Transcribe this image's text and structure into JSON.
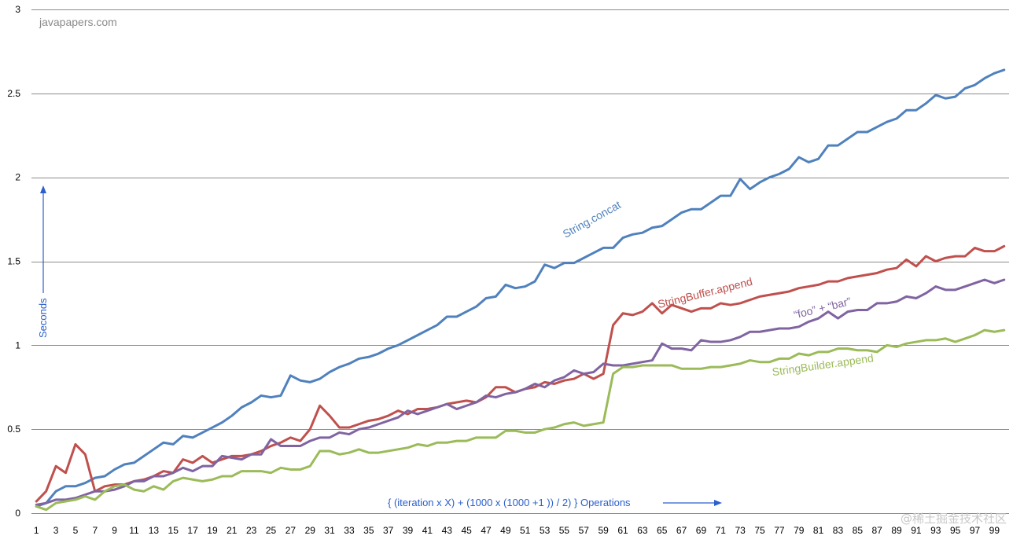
{
  "watermark": "javapapers.com",
  "footer_mark": "@稀土掘金技术社区",
  "colors": {
    "concat": "#4f81bd",
    "buffer": "#c0504d",
    "plus": "#8064a2",
    "builder": "#9bbb59",
    "annotation": "#2a5fcc",
    "grid": "#8c8c8c"
  },
  "chart_data": {
    "type": "line",
    "title": "",
    "xlabel": "{ (iteration x X) + (1000 x (1000 +1 )) / 2) } Operations",
    "ylabel": "Seconds",
    "ylim": [
      0,
      3
    ],
    "yticks": [
      "0",
      "0.5",
      "1",
      "1.5",
      "2",
      "2.5",
      "3"
    ],
    "x_tick_labels": [
      "1",
      "3",
      "5",
      "7",
      "9",
      "11",
      "13",
      "15",
      "17",
      "19",
      "21",
      "23",
      "25",
      "27",
      "29",
      "31",
      "33",
      "35",
      "37",
      "39",
      "41",
      "43",
      "45",
      "47",
      "49",
      "51",
      "53",
      "55",
      "57",
      "59",
      "61",
      "63",
      "65",
      "67",
      "69",
      "71",
      "73",
      "75",
      "77",
      "79",
      "81",
      "83",
      "85",
      "87",
      "89",
      "91",
      "93",
      "95",
      "97",
      "99"
    ],
    "x_count": 100,
    "grid": true,
    "series": [
      {
        "name": "String.concat",
        "color_key": "concat",
        "label_x": 58,
        "label_y": 1.73,
        "label_rot": -29,
        "values": [
          0.04,
          0.06,
          0.13,
          0.16,
          0.16,
          0.18,
          0.21,
          0.22,
          0.26,
          0.29,
          0.3,
          0.34,
          0.38,
          0.42,
          0.41,
          0.46,
          0.45,
          0.48,
          0.51,
          0.54,
          0.58,
          0.63,
          0.66,
          0.7,
          0.69,
          0.7,
          0.82,
          0.79,
          0.78,
          0.8,
          0.84,
          0.87,
          0.89,
          0.92,
          0.93,
          0.95,
          0.98,
          1.0,
          1.03,
          1.06,
          1.09,
          1.12,
          1.17,
          1.17,
          1.2,
          1.23,
          1.28,
          1.29,
          1.36,
          1.34,
          1.35,
          1.38,
          1.48,
          1.46,
          1.49,
          1.49,
          1.52,
          1.55,
          1.58,
          1.58,
          1.64,
          1.66,
          1.67,
          1.7,
          1.71,
          1.75,
          1.79,
          1.81,
          1.81,
          1.85,
          1.89,
          1.89,
          1.99,
          1.93,
          1.97,
          2.0,
          2.02,
          2.05,
          2.12,
          2.09,
          2.11,
          2.19,
          2.19,
          2.23,
          2.27,
          2.27,
          2.3,
          2.33,
          2.35,
          2.4,
          2.4,
          2.44,
          2.49,
          2.47,
          2.48,
          2.53,
          2.55,
          2.59,
          2.62,
          2.64
        ]
      },
      {
        "name": "StringBuffer.append",
        "color_key": "buffer",
        "label_x": 69.5,
        "label_y": 1.29,
        "label_rot": -14,
        "values": [
          0.07,
          0.13,
          0.28,
          0.24,
          0.41,
          0.35,
          0.13,
          0.16,
          0.17,
          0.17,
          0.19,
          0.2,
          0.22,
          0.25,
          0.24,
          0.32,
          0.3,
          0.34,
          0.3,
          0.32,
          0.34,
          0.34,
          0.35,
          0.37,
          0.4,
          0.42,
          0.45,
          0.43,
          0.5,
          0.64,
          0.58,
          0.51,
          0.51,
          0.53,
          0.55,
          0.56,
          0.58,
          0.61,
          0.59,
          0.62,
          0.62,
          0.63,
          0.65,
          0.66,
          0.67,
          0.66,
          0.69,
          0.75,
          0.75,
          0.72,
          0.74,
          0.75,
          0.78,
          0.77,
          0.79,
          0.8,
          0.83,
          0.8,
          0.83,
          1.12,
          1.19,
          1.18,
          1.2,
          1.25,
          1.19,
          1.24,
          1.22,
          1.2,
          1.22,
          1.22,
          1.25,
          1.24,
          1.25,
          1.27,
          1.29,
          1.3,
          1.31,
          1.32,
          1.34,
          1.35,
          1.36,
          1.38,
          1.38,
          1.4,
          1.41,
          1.42,
          1.43,
          1.45,
          1.46,
          1.51,
          1.47,
          1.53,
          1.5,
          1.52,
          1.53,
          1.53,
          1.58,
          1.56,
          1.56,
          1.59
        ]
      },
      {
        "name": "“foo” + “bar”",
        "color_key": "plus",
        "label_x": 81.5,
        "label_y": 1.2,
        "label_rot": -14,
        "values": [
          0.05,
          0.06,
          0.08,
          0.08,
          0.09,
          0.11,
          0.13,
          0.13,
          0.14,
          0.16,
          0.19,
          0.19,
          0.22,
          0.22,
          0.24,
          0.27,
          0.25,
          0.28,
          0.28,
          0.34,
          0.33,
          0.32,
          0.35,
          0.35,
          0.44,
          0.4,
          0.4,
          0.4,
          0.43,
          0.45,
          0.45,
          0.48,
          0.47,
          0.5,
          0.51,
          0.53,
          0.55,
          0.57,
          0.61,
          0.59,
          0.61,
          0.63,
          0.65,
          0.62,
          0.64,
          0.66,
          0.7,
          0.69,
          0.71,
          0.72,
          0.74,
          0.77,
          0.75,
          0.79,
          0.81,
          0.85,
          0.83,
          0.84,
          0.89,
          0.88,
          0.88,
          0.89,
          0.9,
          0.91,
          1.01,
          0.98,
          0.98,
          0.97,
          1.03,
          1.02,
          1.02,
          1.03,
          1.05,
          1.08,
          1.08,
          1.09,
          1.1,
          1.1,
          1.11,
          1.14,
          1.16,
          1.2,
          1.16,
          1.2,
          1.21,
          1.21,
          1.25,
          1.25,
          1.26,
          1.29,
          1.28,
          1.31,
          1.35,
          1.33,
          1.33,
          1.35,
          1.37,
          1.39,
          1.37,
          1.39
        ]
      },
      {
        "name": "StringBuilder.append",
        "color_key": "builder",
        "label_x": 81.5,
        "label_y": 0.86,
        "label_rot": -8,
        "values": [
          0.04,
          0.02,
          0.06,
          0.07,
          0.08,
          0.1,
          0.08,
          0.13,
          0.16,
          0.17,
          0.14,
          0.13,
          0.16,
          0.14,
          0.19,
          0.21,
          0.2,
          0.19,
          0.2,
          0.22,
          0.22,
          0.25,
          0.25,
          0.25,
          0.24,
          0.27,
          0.26,
          0.26,
          0.28,
          0.37,
          0.37,
          0.35,
          0.36,
          0.38,
          0.36,
          0.36,
          0.37,
          0.38,
          0.39,
          0.41,
          0.4,
          0.42,
          0.42,
          0.43,
          0.43,
          0.45,
          0.45,
          0.45,
          0.49,
          0.49,
          0.48,
          0.48,
          0.5,
          0.51,
          0.53,
          0.54,
          0.52,
          0.53,
          0.54,
          0.83,
          0.87,
          0.87,
          0.88,
          0.88,
          0.88,
          0.88,
          0.86,
          0.86,
          0.86,
          0.87,
          0.87,
          0.88,
          0.89,
          0.91,
          0.9,
          0.9,
          0.92,
          0.92,
          0.95,
          0.94,
          0.96,
          0.96,
          0.98,
          0.98,
          0.97,
          0.97,
          0.96,
          1.0,
          0.99,
          1.01,
          1.02,
          1.03,
          1.03,
          1.04,
          1.02,
          1.04,
          1.06,
          1.09,
          1.08,
          1.09
        ]
      }
    ]
  }
}
